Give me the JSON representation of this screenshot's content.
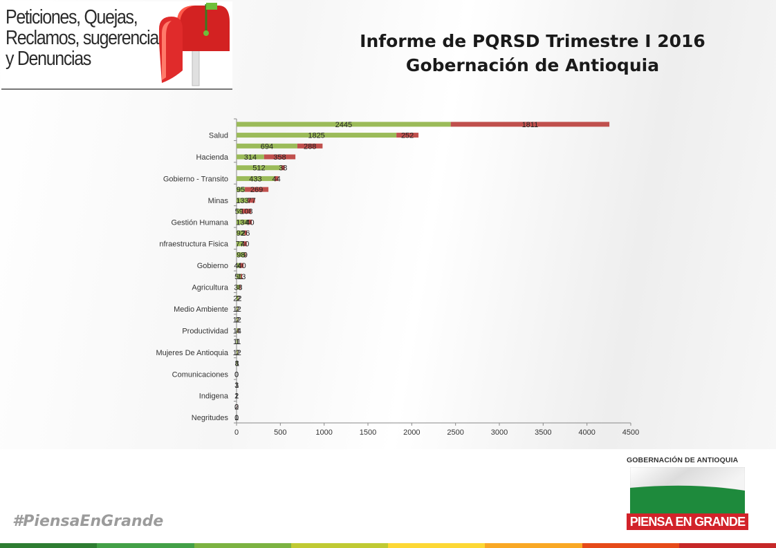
{
  "logo": {
    "lines": [
      "Peticiones, Quejas,",
      "Reclamos, sugerencia",
      "y Denuncias"
    ]
  },
  "title": {
    "line1": "Informe de PQRSD Trimestre I 2016",
    "line2": "Gobernación de Antioquia"
  },
  "chart_data": {
    "type": "bar",
    "orientation": "horizontal",
    "stacked": true,
    "xlim": [
      0,
      4500
    ],
    "x_ticks": [
      0,
      500,
      1000,
      1500,
      2000,
      2500,
      3000,
      3500,
      4000,
      4500
    ],
    "category_labels": [
      {
        "row": 1,
        "label": "Salud"
      },
      {
        "row": 3,
        "label": "Hacienda"
      },
      {
        "row": 5,
        "label": "Gobierno - Transito"
      },
      {
        "row": 7,
        "label": "Minas"
      },
      {
        "row": 9,
        "label": "Gestión Humana"
      },
      {
        "row": 11,
        "label": "nfraestructura Fisica"
      },
      {
        "row": 13,
        "label": "Gobierno"
      },
      {
        "row": 15,
        "label": "Agricultura"
      },
      {
        "row": 17,
        "label": "Medio Ambiente"
      },
      {
        "row": 19,
        "label": "Productividad"
      },
      {
        "row": 21,
        "label": "Mujeres De Antioquia"
      },
      {
        "row": 23,
        "label": "Comunicaciones"
      },
      {
        "row": 25,
        "label": "Indigena"
      },
      {
        "row": 27,
        "label": "Negritudes"
      }
    ],
    "rows": 28,
    "series": [
      {
        "color": "#9bbb59",
        "values": [
          2445,
          1825,
          694,
          314,
          512,
          433,
          95,
          133,
          59,
          134,
          92,
          77,
          98,
          40,
          51,
          38,
          22,
          12,
          12,
          14,
          11,
          12,
          8,
          0,
          3,
          2,
          0,
          1
        ]
      },
      {
        "color": "#c0504d",
        "values": [
          1811,
          252,
          288,
          358,
          38,
          44,
          269,
          77,
          108,
          40,
          26,
          40,
          9,
          40,
          13,
          8,
          2,
          2,
          2,
          4,
          1,
          2,
          1,
          0,
          1,
          1,
          2,
          0
        ]
      }
    ]
  },
  "footer": {
    "hashtag": "#PiensaEnGrande",
    "gob_name": "GOBERNACIÓN DE ANTIOQUIA",
    "slogan": "PIENSA EN GRANDE",
    "bar_colors": [
      "#2e7d32",
      "#43a047",
      "#7cb342",
      "#c0ca33",
      "#fdd835",
      "#f9a825",
      "#e64a19",
      "#c62828"
    ]
  }
}
